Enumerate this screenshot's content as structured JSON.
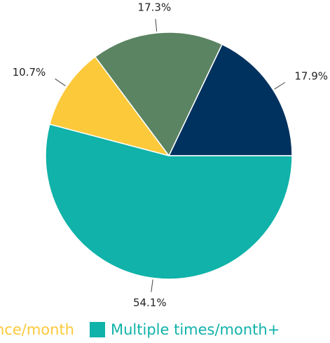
{
  "chart_data": {
    "type": "pie",
    "categories": [
      null,
      null,
      "Once/month",
      "Multiple times/month+"
    ],
    "values": [
      17.9,
      17.3,
      10.7,
      54.1
    ],
    "value_labels": [
      "17.9%",
      "17.3%",
      "10.7%",
      "54.1%"
    ],
    "colors": [
      "#00325f",
      "#5b8462",
      "#fcc93a",
      "#10b2a9"
    ]
  }
}
